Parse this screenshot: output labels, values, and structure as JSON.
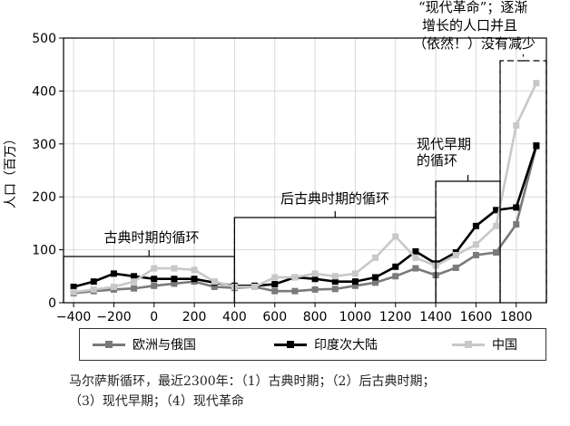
{
  "chart_data": {
    "type": "line",
    "ylabel": "人口（百万）",
    "xlim": [
      -450,
      1950
    ],
    "ylim": [
      0,
      500
    ],
    "x_ticks": [
      -400,
      -200,
      0,
      200,
      400,
      600,
      800,
      1000,
      1200,
      1400,
      1600,
      1800
    ],
    "x_tick_labels": [
      "−400",
      "−200",
      "0",
      "200",
      "400",
      "600",
      "800",
      "1000",
      "1200",
      "1400",
      "1600",
      "1800"
    ],
    "y_ticks": [
      0,
      100,
      200,
      300,
      400,
      500
    ],
    "y_tick_labels": [
      "0",
      "100",
      "200",
      "300",
      "400",
      "500"
    ],
    "grid": true,
    "legend_position": "bottom",
    "series": [
      {
        "name": "欧洲与俄国",
        "color": "#7a7a7a",
        "x": [
          -400,
          -300,
          -200,
          -100,
          0,
          100,
          200,
          300,
          400,
          500,
          600,
          700,
          800,
          900,
          1000,
          1100,
          1200,
          1300,
          1400,
          1500,
          1600,
          1700,
          1800,
          1900
        ],
        "values": [
          18,
          22,
          25,
          27,
          32,
          36,
          40,
          30,
          28,
          30,
          22,
          22,
          25,
          26,
          32,
          38,
          50,
          65,
          52,
          66,
          90,
          95,
          148,
          295
        ]
      },
      {
        "name": "印度次大陆",
        "color": "#000000",
        "x": [
          -400,
          -300,
          -200,
          -100,
          0,
          100,
          200,
          300,
          400,
          500,
          600,
          700,
          800,
          900,
          1000,
          1100,
          1200,
          1300,
          1400,
          1500,
          1600,
          1700,
          1800,
          1900
        ],
        "values": [
          30,
          40,
          55,
          50,
          45,
          45,
          45,
          38,
          32,
          32,
          35,
          48,
          45,
          40,
          40,
          48,
          68,
          97,
          74,
          95,
          145,
          175,
          180,
          297
        ]
      },
      {
        "name": "中国",
        "color": "#c8c8c8",
        "x": [
          -400,
          -300,
          -200,
          -100,
          0,
          100,
          200,
          300,
          400,
          500,
          600,
          700,
          800,
          900,
          1000,
          1100,
          1200,
          1300,
          1400,
          1500,
          1600,
          1700,
          1800,
          1900
        ],
        "values": [
          20,
          25,
          30,
          40,
          65,
          65,
          62,
          40,
          30,
          30,
          48,
          48,
          55,
          50,
          55,
          85,
          125,
          85,
          70,
          90,
          110,
          145,
          335,
          415
        ]
      }
    ],
    "annotations": [
      {
        "text": "古典时期的循环",
        "x_range": [
          -450,
          400
        ]
      },
      {
        "text": "后古典时期的循环",
        "x_range": [
          400,
          1400
        ]
      },
      {
        "text_lines": [
          "现代早期",
          "的循环"
        ],
        "x_range": [
          1400,
          1720
        ]
      },
      {
        "text_lines": [
          "“现代革命”；逐渐",
          "增长的人口并且",
          "（依然！）没有减少"
        ],
        "x_range": [
          1720,
          1950
        ]
      }
    ]
  },
  "caption": {
    "line1": "马尔萨斯循环，最近2300年：（1）古典时期；（2）后古典时期；",
    "line2": "（3）现代早期；（4）现代革命"
  }
}
